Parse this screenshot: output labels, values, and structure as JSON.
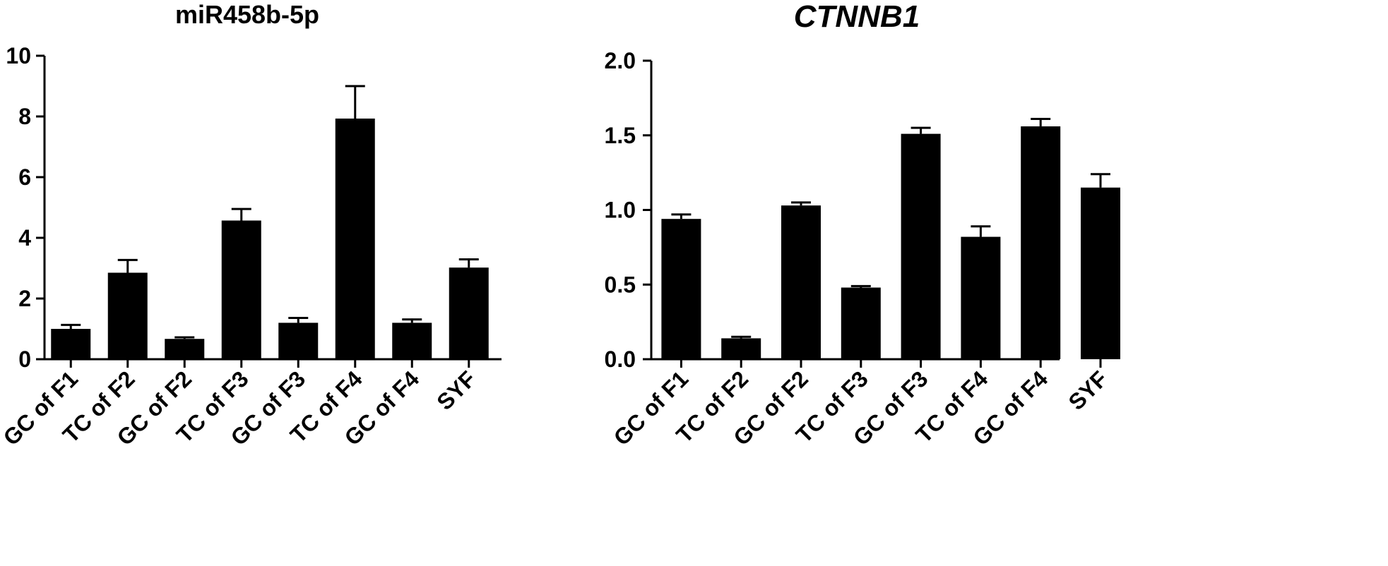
{
  "chart_data": [
    {
      "type": "bar",
      "title": "miR458b-5p",
      "title_italic": false,
      "categories": [
        "GC of F1",
        "TC of F2",
        "GC of F2",
        "TC of F3",
        "GC of F3",
        "TC of F4",
        "GC of F4",
        "SYF"
      ],
      "values": [
        1.0,
        2.85,
        0.67,
        4.57,
        1.2,
        7.93,
        1.2,
        3.02
      ],
      "errors": [
        0.13,
        0.42,
        0.05,
        0.38,
        0.16,
        1.07,
        0.11,
        0.27
      ],
      "yticks": [
        0,
        2,
        4,
        6,
        8,
        10
      ],
      "ylim": [
        0,
        10
      ],
      "bar_color": "#000000",
      "grid": false
    },
    {
      "type": "bar",
      "title": "CTNNB1",
      "title_italic": true,
      "categories": [
        "GC of F1",
        "TC of F2",
        "GC of F2",
        "TC of F3",
        "GC of F3",
        "TC of F4",
        "GC of F4",
        "SYF"
      ],
      "values": [
        0.94,
        0.14,
        1.03,
        0.48,
        1.51,
        0.82,
        1.56,
        1.15
      ],
      "errors": [
        0.03,
        0.01,
        0.02,
        0.01,
        0.04,
        0.07,
        0.05,
        0.09
      ],
      "yticks": [
        "0.0",
        "0.5",
        "1.0",
        "1.5",
        "2.0"
      ],
      "ylim": [
        0,
        2.0
      ],
      "bar_color": "#000000",
      "grid": false
    }
  ]
}
